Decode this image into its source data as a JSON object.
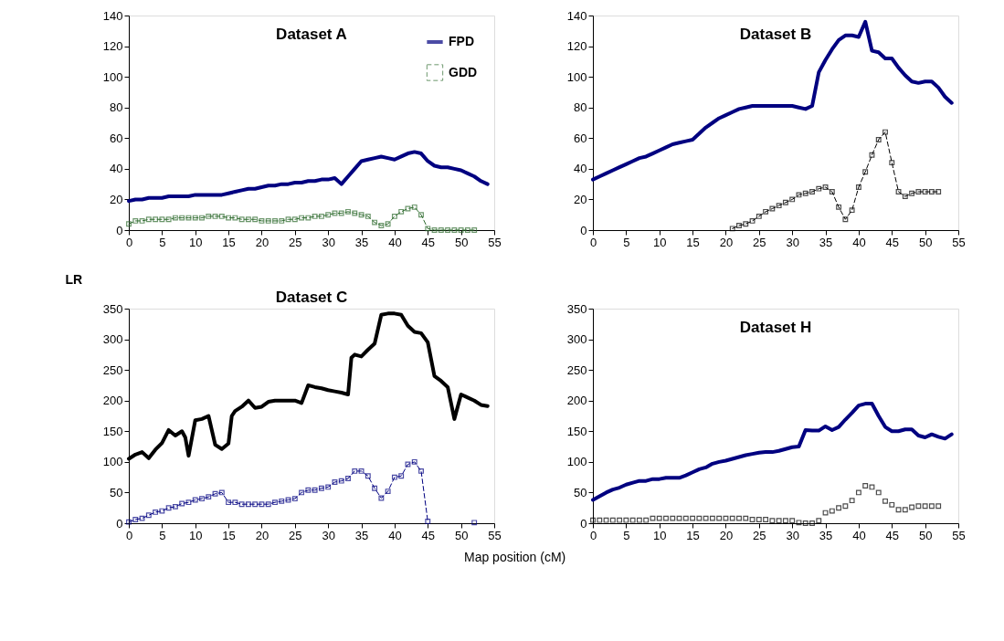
{
  "chart_data": [
    {
      "type": "line",
      "title": "Dataset A",
      "xlim": [
        0,
        55
      ],
      "xticks": [
        0,
        5,
        10,
        15,
        20,
        25,
        30,
        35,
        40,
        45,
        50,
        55
      ],
      "ylim": [
        0,
        140
      ],
      "yticks": [
        0,
        20,
        40,
        60,
        80,
        100,
        120,
        140
      ],
      "grid": false,
      "legend": "top right",
      "series": [
        {
          "name": "FPD",
          "color": "#000080",
          "marker": "none",
          "line_style": "solid",
          "x": [
            0,
            1,
            2,
            3,
            4,
            5,
            6,
            7,
            8,
            9,
            10,
            11,
            12,
            13,
            14,
            15,
            16,
            17,
            18,
            19,
            20,
            21,
            22,
            23,
            24,
            25,
            26,
            27,
            28,
            29,
            30,
            31,
            32,
            33,
            34,
            35,
            36,
            37,
            38,
            39,
            40,
            41,
            42,
            43,
            44,
            45,
            46,
            47,
            48,
            49,
            50,
            51,
            52,
            53,
            54
          ],
          "values": [
            19,
            20,
            20,
            21,
            21,
            21,
            22,
            22,
            22,
            22,
            23,
            23,
            23,
            23,
            23,
            24,
            25,
            26,
            27,
            27,
            28,
            29,
            29,
            30,
            30,
            31,
            31,
            32,
            32,
            33,
            33,
            34,
            30,
            35,
            40,
            45,
            46,
            47,
            48,
            47,
            46,
            48,
            50,
            51,
            50,
            45,
            42,
            41,
            41,
            40,
            39,
            37,
            35,
            32,
            30
          ]
        },
        {
          "name": "GDD",
          "color": "#2e6b2e",
          "marker": "square",
          "line_style": "dashed",
          "x": [
            0,
            1,
            2,
            3,
            4,
            5,
            6,
            7,
            8,
            9,
            10,
            11,
            12,
            13,
            14,
            15,
            16,
            17,
            18,
            19,
            20,
            21,
            22,
            23,
            24,
            25,
            26,
            27,
            28,
            29,
            30,
            31,
            32,
            33,
            34,
            35,
            36,
            37,
            38,
            39,
            40,
            41,
            42,
            43,
            44,
            45,
            46,
            47,
            48,
            49,
            50,
            51,
            52
          ],
          "values": [
            4,
            6,
            6,
            7,
            7,
            7,
            7,
            8,
            8,
            8,
            8,
            8,
            9,
            9,
            9,
            8,
            8,
            7,
            7,
            7,
            6,
            6,
            6,
            6,
            7,
            7,
            8,
            8,
            9,
            9,
            10,
            11,
            11,
            12,
            11,
            10,
            9,
            5,
            3,
            4,
            9,
            12,
            14,
            15,
            10,
            1,
            0,
            0,
            0,
            0,
            0,
            0,
            0
          ]
        }
      ]
    },
    {
      "type": "line",
      "title": "Dataset B",
      "xlim": [
        0,
        55
      ],
      "xticks": [
        0,
        5,
        10,
        15,
        20,
        25,
        30,
        35,
        40,
        45,
        50,
        55
      ],
      "ylim": [
        0,
        140
      ],
      "yticks": [
        0,
        20,
        40,
        60,
        80,
        100,
        120,
        140
      ],
      "grid": false,
      "series": [
        {
          "color": "#000080",
          "marker": "none",
          "line_style": "solid",
          "x": [
            0,
            1,
            2,
            3,
            4,
            5,
            6,
            7,
            8,
            9,
            10,
            11,
            12,
            13,
            14,
            15,
            16,
            17,
            18,
            19,
            20,
            21,
            22,
            23,
            24,
            25,
            26,
            27,
            28,
            29,
            30,
            31,
            32,
            33,
            34,
            35,
            36,
            37,
            38,
            39,
            40,
            41,
            42,
            43,
            44,
            45,
            46,
            47,
            48,
            49,
            50,
            51,
            52,
            53,
            54
          ],
          "values": [
            33,
            35,
            37,
            39,
            41,
            43,
            45,
            47,
            48,
            50,
            52,
            54,
            56,
            57,
            58,
            59,
            63,
            67,
            70,
            73,
            75,
            77,
            79,
            80,
            81,
            81,
            81,
            81,
            81,
            81,
            81,
            80,
            79,
            81,
            103,
            111,
            118,
            124,
            127,
            127,
            126,
            136,
            117,
            116,
            112,
            112,
            106,
            101,
            97,
            96,
            97,
            97,
            93,
            87,
            83
          ]
        },
        {
          "color": "#000000",
          "marker": "square",
          "line_style": "dashed",
          "x": [
            21,
            22,
            23,
            24,
            25,
            26,
            27,
            28,
            29,
            30,
            31,
            32,
            33,
            34,
            35,
            36,
            37,
            38,
            39,
            40,
            41,
            42,
            43,
            44,
            45,
            46,
            47,
            48,
            49,
            50,
            51,
            52
          ],
          "values": [
            1,
            3,
            4,
            6,
            9,
            12,
            14,
            16,
            18,
            20,
            23,
            24,
            25,
            27,
            28,
            25,
            15,
            7,
            13,
            28,
            38,
            49,
            59,
            64,
            44,
            25,
            22,
            24,
            25,
            25,
            25,
            25
          ]
        }
      ]
    },
    {
      "type": "line",
      "title": "Dataset C",
      "xlabel": "Map position (cM)",
      "ylabel": "LR",
      "xlim": [
        0,
        55
      ],
      "xticks": [
        0,
        5,
        10,
        15,
        20,
        25,
        30,
        35,
        40,
        45,
        50,
        55
      ],
      "ylim": [
        0,
        350
      ],
      "yticks": [
        0,
        50,
        100,
        150,
        200,
        250,
        300,
        350
      ],
      "grid": false,
      "series": [
        {
          "color": "#000000",
          "marker": "none",
          "line_style": "solid",
          "x": [
            0,
            1,
            2,
            3,
            4,
            5,
            6,
            7,
            8,
            8.5,
            9,
            10,
            11,
            12,
            13,
            14,
            15,
            15.5,
            16,
            17,
            18,
            19,
            20,
            21,
            22,
            23,
            24,
            25,
            26,
            27,
            28,
            29,
            30,
            31,
            32,
            33,
            33.5,
            34,
            35,
            36,
            37,
            38,
            39,
            40,
            41,
            42,
            43,
            44,
            45,
            46,
            47,
            48,
            49,
            50,
            51,
            52,
            53,
            54
          ],
          "values": [
            105,
            112,
            116,
            106,
            120,
            131,
            152,
            143,
            150,
            140,
            110,
            168,
            170,
            175,
            128,
            121,
            130,
            175,
            183,
            190,
            200,
            188,
            190,
            198,
            200,
            200,
            200,
            200,
            196,
            225,
            222,
            220,
            217,
            215,
            213,
            210,
            270,
            275,
            272,
            283,
            293,
            340,
            342,
            342,
            340,
            322,
            312,
            310,
            295,
            240,
            232,
            222,
            170,
            210,
            205,
            200,
            193,
            191
          ]
        },
        {
          "color": "#000080",
          "marker": "square",
          "line_style": "dashed",
          "x": [
            0,
            1,
            2,
            3,
            4,
            5,
            6,
            7,
            8,
            9,
            10,
            11,
            12,
            13,
            14,
            15,
            16,
            17,
            18,
            19,
            20,
            21,
            22,
            23,
            24,
            25,
            26,
            27,
            28,
            29,
            30,
            31,
            32,
            33,
            34,
            35,
            36,
            37,
            38,
            39,
            40,
            41,
            42,
            43,
            44,
            45,
            46,
            47,
            48,
            49,
            50,
            51,
            52
          ],
          "values": [
            2,
            6,
            8,
            13,
            18,
            20,
            25,
            27,
            32,
            34,
            38,
            40,
            43,
            48,
            50,
            34,
            34,
            31,
            31,
            31,
            31,
            31,
            34,
            36,
            38,
            40,
            50,
            54,
            54,
            57,
            59,
            67,
            69,
            73,
            85,
            85,
            77,
            57,
            41,
            52,
            75,
            77,
            96,
            100,
            85,
            3,
            null,
            null,
            null,
            null,
            null,
            null,
            1
          ]
        }
      ]
    },
    {
      "type": "line",
      "title": "Dataset H",
      "xlim": [
        0,
        55
      ],
      "xticks": [
        0,
        5,
        10,
        15,
        20,
        25,
        30,
        35,
        40,
        45,
        50,
        55
      ],
      "ylim": [
        0,
        350
      ],
      "yticks": [
        0,
        50,
        100,
        150,
        200,
        250,
        300,
        350
      ],
      "grid": false,
      "series": [
        {
          "color": "#000080",
          "marker": "none",
          "line_style": "solid",
          "x": [
            0,
            1,
            2,
            3,
            4,
            5,
            6,
            7,
            8,
            9,
            10,
            11,
            12,
            13,
            14,
            15,
            16,
            17,
            18,
            19,
            20,
            21,
            22,
            23,
            24,
            25,
            26,
            27,
            28,
            29,
            30,
            31,
            32,
            33,
            34,
            35,
            36,
            37,
            38,
            39,
            40,
            41,
            42,
            43,
            44,
            45,
            46,
            47,
            48,
            49,
            50,
            51,
            52,
            53,
            54
          ],
          "values": [
            38,
            44,
            50,
            55,
            58,
            63,
            66,
            69,
            69,
            72,
            72,
            74,
            74,
            74,
            78,
            83,
            88,
            91,
            97,
            100,
            102,
            105,
            108,
            111,
            113,
            115,
            116,
            116,
            118,
            121,
            124,
            125,
            152,
            151,
            151,
            158,
            152,
            157,
            169,
            180,
            192,
            195,
            195,
            175,
            157,
            150,
            150,
            153,
            153,
            143,
            140,
            145,
            141,
            138,
            145
          ]
        },
        {
          "type": "scatter",
          "color": "#000000",
          "marker": "square",
          "x": [
            0,
            1,
            2,
            3,
            4,
            5,
            6,
            7,
            8,
            9,
            10,
            11,
            12,
            13,
            14,
            15,
            16,
            17,
            18,
            19,
            20,
            21,
            22,
            23,
            24,
            25,
            26,
            27,
            28,
            29,
            30,
            31,
            32,
            33,
            34,
            35,
            36,
            37,
            38,
            39,
            40,
            41,
            42,
            43,
            44,
            45,
            46,
            47,
            48,
            49,
            50,
            51,
            52
          ],
          "values": [
            5,
            5,
            5,
            5,
            5,
            5,
            5,
            5,
            5,
            8,
            8,
            8,
            8,
            8,
            8,
            8,
            8,
            8,
            8,
            8,
            8,
            8,
            8,
            8,
            6,
            6,
            6,
            4,
            4,
            4,
            4,
            1,
            0,
            0,
            4,
            17,
            20,
            25,
            28,
            37,
            50,
            61,
            59,
            50,
            36,
            30,
            22,
            22,
            26,
            28,
            28,
            28,
            28
          ]
        }
      ]
    }
  ]
}
